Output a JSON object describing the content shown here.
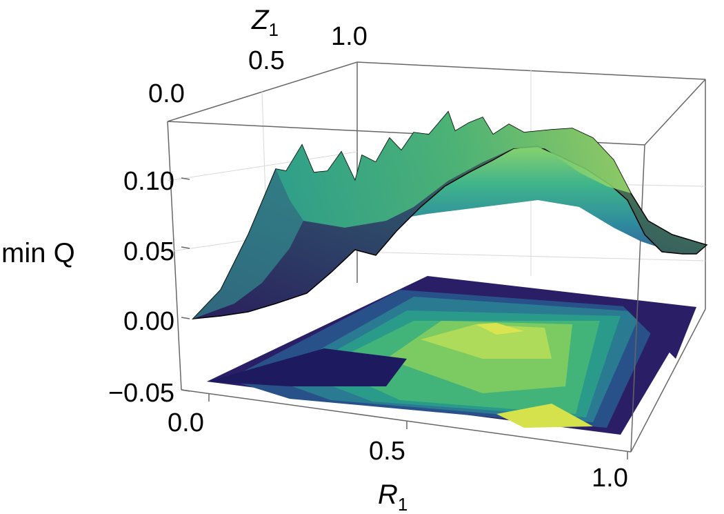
{
  "chart_data": {
    "type": "surface3d",
    "zlabel": "min Q",
    "xlabel": "R",
    "xlabel_sub": "1",
    "ylabel": "Z",
    "ylabel_sub": "1",
    "xticks": [
      "0.0",
      "0.5",
      "1.0"
    ],
    "yticks": [
      "0.0",
      "0.5",
      "1.0"
    ],
    "zticks": [
      "0.10",
      "0.05",
      "0.00",
      "−0.05"
    ],
    "xlim": [
      0,
      1
    ],
    "ylim": [
      0,
      1
    ],
    "zlim": [
      -0.05,
      0.13
    ],
    "colormap": [
      "#2b1b5e",
      "#3b4f9a",
      "#2e7f9e",
      "#2fae8f",
      "#6ccf6a",
      "#c9e45a",
      "#f2e84b"
    ],
    "contour_projection": true,
    "front_edge_curve_z": [
      0.0,
      0.003,
      0.01,
      0.025,
      0.045,
      0.048,
      0.07,
      0.09,
      0.105,
      0.12,
      0.125,
      0.115,
      0.095,
      0.075,
      0.055,
      0.048,
      0.05
    ],
    "back_edge_curve_z": [
      0.05,
      0.085,
      0.11,
      0.108,
      0.125,
      0.11,
      0.125,
      0.115,
      0.13,
      0.125,
      0.13,
      0.12,
      0.13,
      0.125,
      0.12,
      0.1,
      0.09
    ]
  }
}
